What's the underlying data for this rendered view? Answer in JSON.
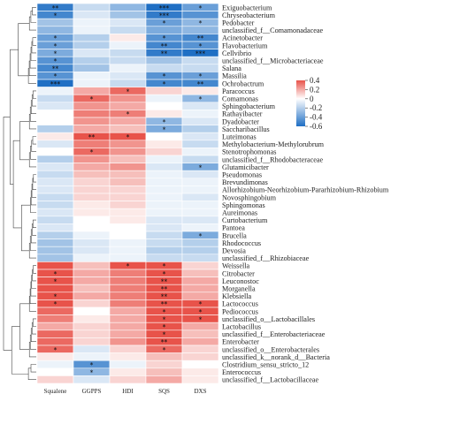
{
  "chart_data": {
    "type": "heatmap",
    "title": "",
    "xlabel": "",
    "ylabel": "",
    "columns": [
      "Squalene",
      "GGPPS",
      "HDI",
      "SQS",
      "DXS"
    ],
    "rows": [
      "Exiguobacterium",
      "Chryseobacterium",
      "Pedobacter",
      "unclassified_f__Comamonadaceae",
      "Acinetobacter",
      "Flavobacterium",
      "Cellvibrio",
      "unclassified_f__Microbacteriaceae",
      "Salana",
      "Massilia",
      "Ochrobactrum",
      "Paracoccus",
      "Comamonas",
      "Sphingobacterium",
      "Rathayibacter",
      "Dyadobacter",
      "Saccharibacillus",
      "Luteimonas",
      "Methylobacterium-Methylorubrum",
      "Stenotrophomonas",
      "unclassified_f__Rhodobacteraceae",
      "Glutamicibacter",
      "Pseudomonas",
      "Brevundimonas",
      "Allorhizobium-Neorhizobium-Pararhizobium-Rhizobium",
      "Novosphingobium",
      "Sphingomonas",
      "Aureimonas",
      "Curtobacterium",
      "Pantoea",
      "Brucella",
      "Rhodococcus",
      "Devosia",
      "unclassified_f__Rhizobiaceae",
      "Weissella",
      "Citrobacter",
      "Leuconostoc",
      "Morganella",
      "Klebsiella",
      "Lactococcus",
      "Pediococcus",
      "unclassified_o__Lactobacillales",
      "Lactobacillus",
      "unclassified_f__Enterobacteriaceae",
      "Enterobacter",
      "unclassified_o__Enterobacterales",
      "unclassified_k__norank_d__Bacteria",
      "Clostridium_sensu_stricto_12",
      "Enterococcus",
      "unclassified_f__Lactobacillaceae"
    ],
    "values": [
      [
        -0.55,
        -0.15,
        -0.3,
        -0.6,
        -0.4
      ],
      [
        -0.5,
        -0.1,
        -0.25,
        -0.55,
        -0.45
      ],
      [
        -0.25,
        -0.05,
        -0.1,
        -0.4,
        -0.3
      ],
      [
        -0.3,
        -0.05,
        -0.15,
        -0.35,
        -0.3
      ],
      [
        -0.4,
        -0.2,
        0.05,
        -0.45,
        -0.5
      ],
      [
        -0.4,
        -0.2,
        -0.05,
        -0.5,
        -0.45
      ],
      [
        -0.35,
        -0.1,
        -0.15,
        -0.55,
        -0.6
      ],
      [
        -0.45,
        -0.2,
        -0.15,
        -0.25,
        -0.15
      ],
      [
        -0.5,
        -0.25,
        -0.05,
        -0.15,
        -0.15
      ],
      [
        -0.45,
        -0.05,
        -0.1,
        -0.45,
        -0.4
      ],
      [
        -0.6,
        -0.05,
        -0.15,
        -0.5,
        -0.5
      ],
      [
        -0.05,
        0.2,
        0.35,
        0.1,
        0.05
      ],
      [
        -0.15,
        0.35,
        0.25,
        -0.05,
        -0.3
      ],
      [
        -0.1,
        0.25,
        0.2,
        0.0,
        -0.1
      ],
      [
        0.0,
        0.3,
        0.3,
        0.05,
        -0.05
      ],
      [
        0.0,
        0.25,
        0.2,
        -0.3,
        -0.1
      ],
      [
        -0.2,
        0.2,
        0.15,
        -0.35,
        -0.2
      ],
      [
        0.05,
        0.5,
        0.45,
        0.0,
        -0.1
      ],
      [
        -0.1,
        0.3,
        0.25,
        0.05,
        -0.15
      ],
      [
        0.0,
        0.35,
        0.25,
        0.1,
        -0.05
      ],
      [
        -0.2,
        0.25,
        0.15,
        -0.05,
        -0.15
      ],
      [
        -0.1,
        0.2,
        0.25,
        -0.1,
        -0.35
      ],
      [
        -0.15,
        0.15,
        0.15,
        -0.05,
        -0.1
      ],
      [
        -0.1,
        0.1,
        0.15,
        -0.05,
        -0.05
      ],
      [
        -0.1,
        0.1,
        0.1,
        -0.05,
        -0.05
      ],
      [
        -0.15,
        0.1,
        0.1,
        -0.05,
        -0.1
      ],
      [
        -0.15,
        0.05,
        0.1,
        -0.05,
        -0.05
      ],
      [
        -0.1,
        0.05,
        0.05,
        -0.05,
        -0.05
      ],
      [
        -0.15,
        0.0,
        0.05,
        -0.1,
        -0.1
      ],
      [
        -0.1,
        0.0,
        0.0,
        -0.1,
        -0.05
      ],
      [
        -0.2,
        -0.05,
        0.0,
        -0.15,
        -0.35
      ],
      [
        -0.25,
        -0.1,
        -0.05,
        -0.15,
        -0.2
      ],
      [
        -0.25,
        -0.1,
        -0.05,
        -0.2,
        -0.2
      ],
      [
        -0.25,
        -0.05,
        -0.05,
        -0.15,
        -0.15
      ],
      [
        0.4,
        0.15,
        0.45,
        0.4,
        0.1
      ],
      [
        0.45,
        0.2,
        0.3,
        0.45,
        0.15
      ],
      [
        0.45,
        0.2,
        0.3,
        0.5,
        0.2
      ],
      [
        0.4,
        0.15,
        0.3,
        0.5,
        0.2
      ],
      [
        0.45,
        0.2,
        0.3,
        0.5,
        0.2
      ],
      [
        0.4,
        0.1,
        0.3,
        0.55,
        0.45
      ],
      [
        0.35,
        0.0,
        0.2,
        0.4,
        0.45
      ],
      [
        0.3,
        0.05,
        0.2,
        0.4,
        0.45
      ],
      [
        0.2,
        0.1,
        0.2,
        0.45,
        0.2
      ],
      [
        0.35,
        0.1,
        0.2,
        0.45,
        0.15
      ],
      [
        0.35,
        0.1,
        0.25,
        0.5,
        0.2
      ],
      [
        0.35,
        -0.1,
        0.1,
        0.35,
        0.1
      ],
      [
        0.05,
        -0.05,
        0.05,
        0.15,
        0.1
      ],
      [
        -0.05,
        -0.45,
        -0.05,
        0.1,
        0.0
      ],
      [
        0.0,
        -0.3,
        0.05,
        0.15,
        0.05
      ],
      [
        0.1,
        -0.1,
        0.1,
        0.2,
        0.05
      ]
    ],
    "significance": [
      [
        "**",
        "",
        "",
        "***",
        "*"
      ],
      [
        "*",
        "",
        "",
        "***",
        ""
      ],
      [
        "",
        "",
        "",
        "*",
        "*"
      ],
      [
        "",
        "",
        "",
        "",
        ""
      ],
      [
        "*",
        "",
        "",
        "*",
        "**"
      ],
      [
        "*",
        "",
        "",
        "**",
        "*"
      ],
      [
        "*",
        "",
        "",
        "**",
        "***"
      ],
      [
        "*",
        "",
        "",
        "",
        ""
      ],
      [
        "**",
        "",
        "",
        "",
        ""
      ],
      [
        "*",
        "",
        "",
        "*",
        "*"
      ],
      [
        "***",
        "",
        "",
        "*",
        "**"
      ],
      [
        "",
        "",
        "*",
        "",
        ""
      ],
      [
        "",
        "*",
        "",
        "",
        "*"
      ],
      [
        "",
        "",
        "",
        "",
        ""
      ],
      [
        "",
        "",
        "*",
        "",
        ""
      ],
      [
        "",
        "",
        "",
        "*",
        ""
      ],
      [
        "",
        "",
        "",
        "*",
        ""
      ],
      [
        "",
        "**",
        "*",
        "",
        ""
      ],
      [
        "",
        "",
        "",
        "",
        ""
      ],
      [
        "",
        "*",
        "",
        "",
        ""
      ],
      [
        "",
        "",
        "",
        "",
        ""
      ],
      [
        "",
        "",
        "",
        "",
        "*"
      ],
      [
        "",
        "",
        "",
        "",
        ""
      ],
      [
        "",
        "",
        "",
        "",
        ""
      ],
      [
        "",
        "",
        "",
        "",
        ""
      ],
      [
        "",
        "",
        "",
        "",
        ""
      ],
      [
        "",
        "",
        "",
        "",
        ""
      ],
      [
        "",
        "",
        "",
        "",
        ""
      ],
      [
        "",
        "",
        "",
        "",
        ""
      ],
      [
        "",
        "",
        "",
        "",
        ""
      ],
      [
        "",
        "",
        "",
        "",
        "*"
      ],
      [
        "",
        "",
        "",
        "",
        ""
      ],
      [
        "",
        "",
        "",
        "",
        ""
      ],
      [
        "",
        "",
        "",
        "",
        ""
      ],
      [
        "",
        "",
        "*",
        "*",
        ""
      ],
      [
        "*",
        "",
        "",
        "*",
        ""
      ],
      [
        "*",
        "",
        "",
        "**",
        ""
      ],
      [
        "",
        "",
        "",
        "**",
        ""
      ],
      [
        "*",
        "",
        "",
        "**",
        ""
      ],
      [
        "*",
        "",
        "",
        "**",
        "*"
      ],
      [
        "",
        "",
        "",
        "*",
        "*"
      ],
      [
        "",
        "",
        "",
        "*",
        "*"
      ],
      [
        "",
        "",
        "",
        "*",
        ""
      ],
      [
        "",
        "",
        "",
        "*",
        ""
      ],
      [
        "",
        "",
        "",
        "**",
        ""
      ],
      [
        "*",
        "",
        "",
        "*",
        ""
      ],
      [
        "",
        "",
        "",
        "",
        ""
      ],
      [
        "",
        "*",
        "",
        "",
        ""
      ],
      [
        "",
        "*",
        "",
        "",
        ""
      ],
      [
        "",
        "",
        "",
        "",
        ""
      ]
    ],
    "colorbar": {
      "range": [
        -0.6,
        0.4
      ],
      "ticks": [
        "0.4",
        "0.2",
        "0",
        "-0.2",
        "-0.4",
        "-0.6"
      ],
      "tick_values": [
        0.4,
        0.2,
        0,
        -0.2,
        -0.4,
        -0.6
      ],
      "low_color": "#1f6fc4",
      "mid_color": "#ffffff",
      "high_color": "#e8534a",
      "legend_position": "top-right"
    },
    "dendrogram": "left"
  }
}
